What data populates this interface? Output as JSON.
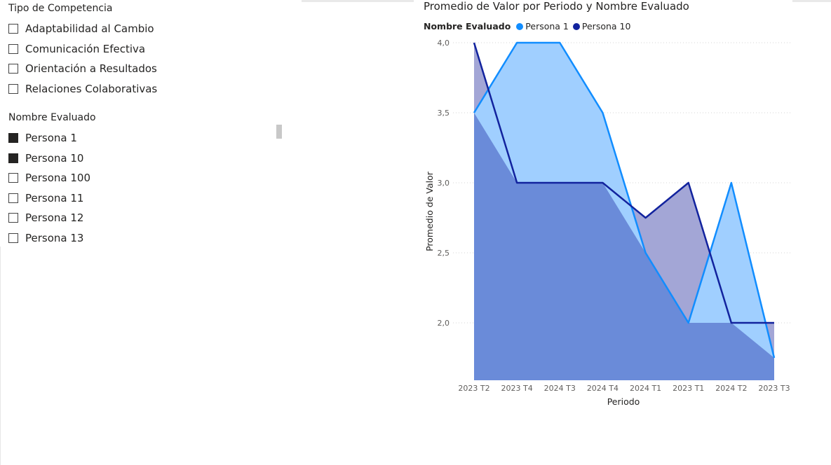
{
  "slicer_competencia": {
    "title": "Tipo de Competencia",
    "items": [
      {
        "label": "Adaptabilidad al Cambio",
        "checked": false
      },
      {
        "label": "Comunicación Efectiva",
        "checked": false
      },
      {
        "label": "Orientación a Resultados",
        "checked": false
      },
      {
        "label": "Relaciones Colaborativas",
        "checked": false
      }
    ]
  },
  "slicer_nombre": {
    "title": "Nombre Evaluado",
    "items": [
      {
        "label": "Persona 1",
        "checked": true
      },
      {
        "label": "Persona 10",
        "checked": true
      },
      {
        "label": "Persona 100",
        "checked": false
      },
      {
        "label": "Persona 11",
        "checked": false
      },
      {
        "label": "Persona 12",
        "checked": false
      },
      {
        "label": "Persona 13",
        "checked": false
      }
    ]
  },
  "chart": {
    "title": "Promedio de Valor por Periodo y Nombre Evaluado",
    "legend_title": "Nombre Evaluado"
  },
  "colors": {
    "persona1_line": "#118dff",
    "persona1_fill": "#a0cfff",
    "persona10_line": "#12239e",
    "persona10_fill": "#a3a6d6",
    "overlap_fill": "#6a8bd9"
  },
  "chart_data": {
    "type": "area",
    "title": "Promedio de Valor por Periodo y Nombre Evaluado",
    "xlabel": "Periodo",
    "ylabel": "Promedio de Valor",
    "categories": [
      "2023 T2",
      "2023 T4",
      "2024 T3",
      "2024 T4",
      "2024 T1",
      "2023 T1",
      "2024 T2",
      "2023 T3"
    ],
    "series": [
      {
        "name": "Persona 1",
        "values": [
          3.5,
          4.0,
          4.0,
          3.5,
          2.5,
          2.0,
          3.0,
          1.75
        ]
      },
      {
        "name": "Persona 10",
        "values": [
          4.0,
          3.0,
          3.0,
          3.0,
          2.75,
          3.0,
          2.0,
          2.0
        ]
      }
    ],
    "yticks": [
      "2,0",
      "2,5",
      "3,0",
      "3,5",
      "4,0"
    ],
    "ytick_values": [
      2.0,
      2.5,
      3.0,
      3.5,
      4.0
    ],
    "ylim": [
      1.75,
      4.0
    ],
    "grid": true,
    "legend_position": "top-left"
  }
}
